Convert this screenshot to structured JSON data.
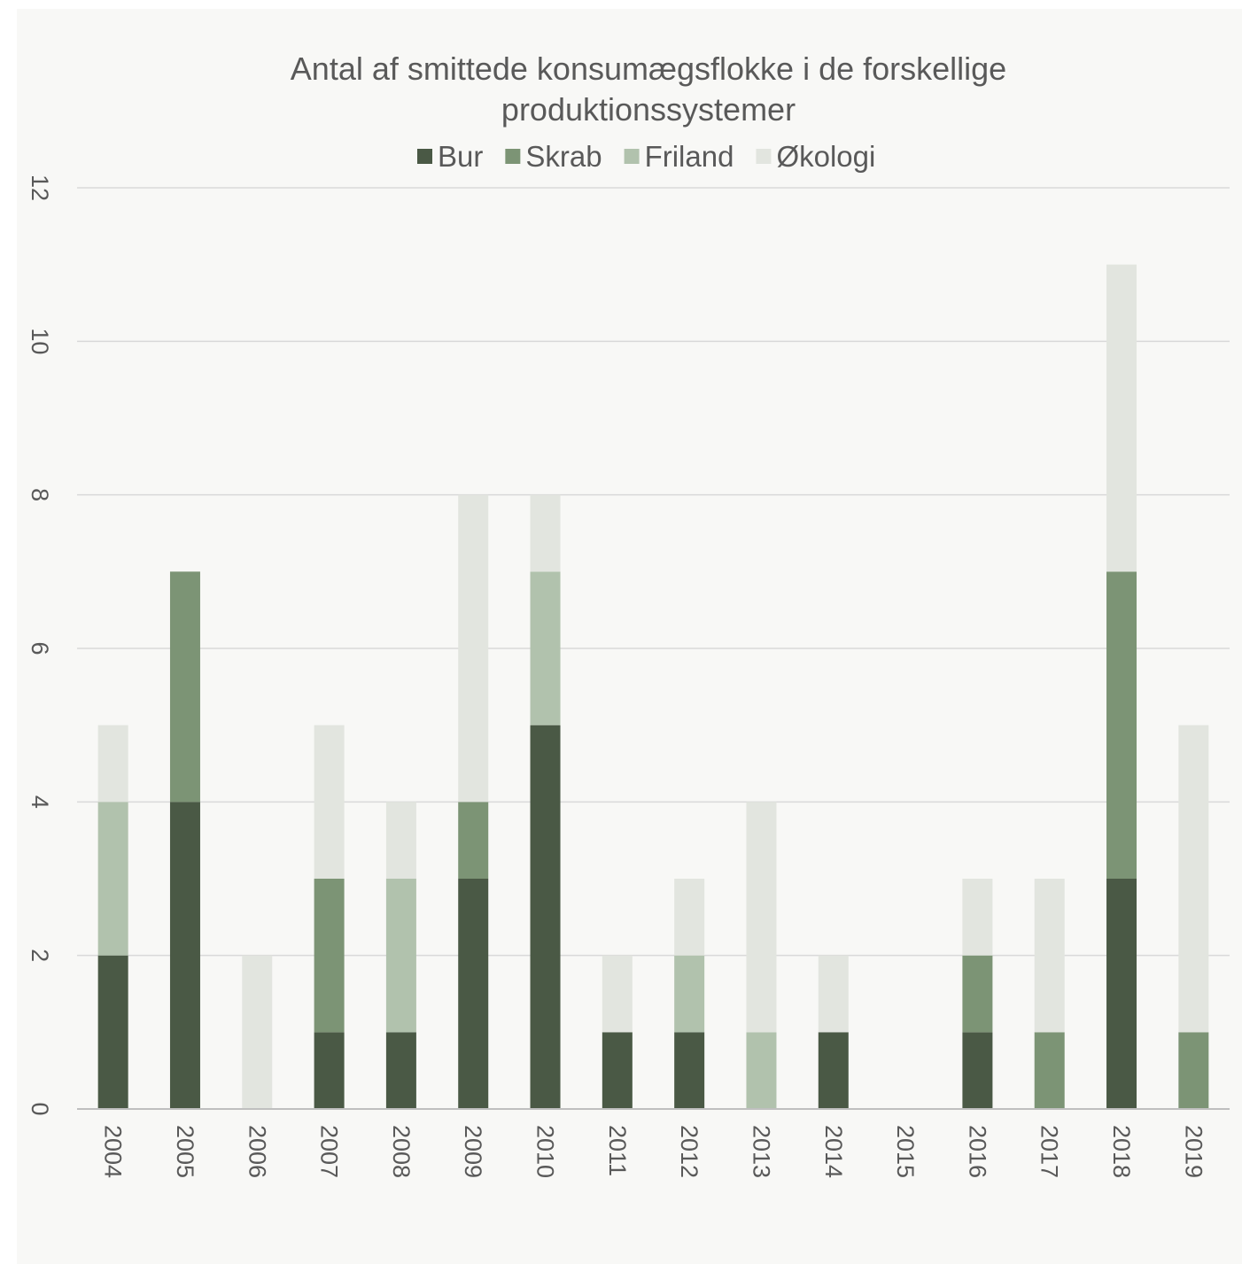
{
  "chart_data": {
    "type": "bar",
    "stacked": true,
    "title_lines": [
      "Antal af smittede konsumægsflokke  i de forskellige",
      "produktionssystemer"
    ],
    "xlabel": "",
    "ylabel": "",
    "ylim": [
      0,
      12
    ],
    "yticks": [
      0,
      2,
      4,
      6,
      8,
      10,
      12
    ],
    "grid": true,
    "legend_position": "top",
    "categories": [
      "2004",
      "2005",
      "2006",
      "2007",
      "2008",
      "2009",
      "2010",
      "2011",
      "2012",
      "2013",
      "2014",
      "2015",
      "2016",
      "2017",
      "2018",
      "2019"
    ],
    "series": [
      {
        "name": "Bur",
        "color": "#4a5945",
        "values": [
          2,
          4,
          0,
          1,
          1,
          3,
          5,
          1,
          1,
          0,
          1,
          0,
          1,
          0,
          3,
          0
        ]
      },
      {
        "name": "Skrab",
        "color": "#7c9475",
        "values": [
          0,
          3,
          0,
          2,
          0,
          1,
          0,
          0,
          0,
          0,
          0,
          0,
          1,
          1,
          4,
          1
        ]
      },
      {
        "name": "Friland",
        "color": "#b1c2ad",
        "values": [
          2,
          0,
          0,
          0,
          2,
          0,
          2,
          0,
          1,
          1,
          0,
          0,
          0,
          0,
          0,
          0
        ]
      },
      {
        "name": "Økologi",
        "color": "#e2e5df",
        "values": [
          1,
          0,
          2,
          2,
          1,
          4,
          1,
          1,
          1,
          3,
          1,
          0,
          1,
          2,
          4,
          4
        ]
      }
    ]
  }
}
